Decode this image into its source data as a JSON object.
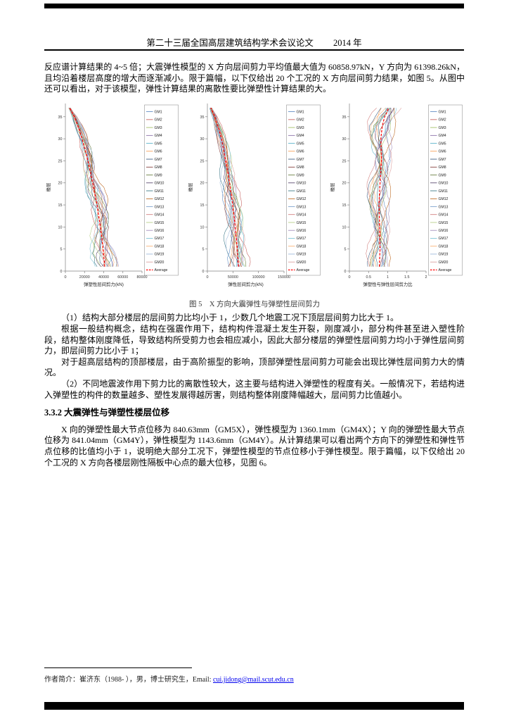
{
  "header": {
    "title": "第二十三届全国高层建筑结构学术会议论文",
    "year": "2014 年"
  },
  "paragraphs": {
    "p1": "反应谱计算结果的 4~5 倍；大震弹性模型的 X 方向层间剪力平均值最大值为 60858.97kN，Y 方向为 61398.26kN，且均沿着楼层高度的增大而逐渐减小。限于篇幅，以下仅给出 20 个工况的 X 方向层间剪力结果，如图 5。从图中还可以看出，对于该模型，弹性计算结果的离散性要比弹塑性计算结果的大。",
    "p2": "（1）结构大部分楼层的层间剪力比均小于 1，少数几个地震工况下顶层层间剪力比大于 1。",
    "p3": "根据一般结构概念，结构在强震作用下，结构构件混凝土发生开裂，刚度减小，部分构件甚至进入塑性阶段，结构整体刚度降低，导致结构所受剪力也会相应减小，因此大部分楼层的弹塑性层间剪力均小于弹性层间剪力，即层间剪力比小于 1；",
    "p4": "对于超高层结构的顶部楼层，由于高阶振型的影响，顶部弹塑性层间剪力可能会出现比弹性层间剪力大的情况。",
    "p5": "（2）不同地震波作用下剪力比的离散性较大，这主要与结构进入弹塑性的程度有关。一般情况下，若结构进入弹塑性的构件的数量越多、塑性发展得越厉害，则结构整体刚度降幅越大，层间剪力比值越小。",
    "p6": "X 向的弹塑性最大节点位移为 840.63mm（GM5X），弹性模型为 1360.1mm（GM4X）；Y 向的弹塑性最大节点位移为 841.04mm（GM4Y），弹性模型为 1143.6mm（GM4Y）。从计算结果可以看出两个方向下的弹塑性和弹性节点位移的比值均小于 1，说明绝大部分工况下，弹塑性模型的节点位移小于弹性模型。限于篇幅，以下仅给出 20 个工况的 X 方向各楼层刚性隔板中心点的最大位移，见图 6。"
  },
  "section_heading": "3.3.2 大震弹性与弹塑性楼层位移",
  "figure": {
    "caption": "图 5　X 方向大震弹性与弹塑性层间剪力"
  },
  "footer": {
    "bio_prefix": "作者简介：崔济东（1988- ），男，博士研究生，Email: ",
    "email": "cui.jidong@mail.scut.edu.cn"
  },
  "palette": [
    "#4F81BD",
    "#C0504D",
    "#9BBB59",
    "#8064A2",
    "#4BACC6",
    "#F79646",
    "#2C4D75",
    "#772C2A",
    "#5F7530",
    "#4D3B62",
    "#276A7C",
    "#B65708",
    "#729ACA",
    "#CD7371",
    "#AFC97A",
    "#9983B5",
    "#6FBDD1",
    "#F9AB6B",
    "#95B3D7",
    "#D99694"
  ],
  "chart_data": [
    {
      "type": "line",
      "title": "",
      "xlabel": "弹塑性层间剪力(kN)",
      "ylabel": "楼层",
      "xlim": [
        0,
        80000
      ],
      "ylim": [
        0,
        38
      ],
      "xticks": [
        "0",
        "20000",
        "40000",
        "60000",
        "80000"
      ],
      "yticks": [
        0,
        5,
        10,
        15,
        20,
        25,
        30,
        35
      ],
      "legend": [
        "GM1",
        "GM2",
        "GM3",
        "GM4",
        "GM5",
        "GM6",
        "GM7",
        "GM8",
        "GM9",
        "GM10",
        "GM11",
        "GM12",
        "GM13",
        "GM14",
        "GM15",
        "GM16",
        "GM17",
        "GM18",
        "GM19",
        "GM20",
        "Average"
      ],
      "legend_position": "right",
      "grid": false,
      "average_series": {
        "name": "Average",
        "color": "#FF0000",
        "style": "dashed",
        "stories": [
          1,
          5,
          10,
          15,
          20,
          25,
          30,
          33,
          35,
          36,
          37
        ],
        "values": [
          41000,
          39500,
          36500,
          33000,
          28500,
          23500,
          17500,
          13000,
          9500,
          7000,
          4500
        ]
      }
    },
    {
      "type": "line",
      "title": "",
      "xlabel": "弹性层间剪力(kN)",
      "ylabel": "楼层",
      "xlim": [
        0,
        150000
      ],
      "ylim": [
        0,
        38
      ],
      "xticks": [
        "0",
        "50000",
        "100000",
        "150000"
      ],
      "yticks": [
        0,
        5,
        10,
        15,
        20,
        25,
        30,
        35
      ],
      "legend": [
        "GM1",
        "GM2",
        "GM3",
        "GM4",
        "GM5",
        "GM6",
        "GM7",
        "GM8",
        "GM9",
        "GM10",
        "GM11",
        "GM12",
        "GM13",
        "GM14",
        "GM15",
        "GM16",
        "GM17",
        "GM18",
        "GM19",
        "GM20",
        "Average"
      ],
      "legend_position": "right",
      "grid": false,
      "average_series": {
        "name": "Average",
        "color": "#FF0000",
        "style": "dashed",
        "stories": [
          1,
          5,
          10,
          15,
          20,
          25,
          30,
          33,
          35,
          36,
          37
        ],
        "values": [
          60859,
          58500,
          54500,
          49500,
          43500,
          36000,
          27500,
          20500,
          15000,
          11000,
          7000
        ]
      }
    },
    {
      "type": "line",
      "title": "",
      "xlabel": "弹塑性与弹性层间剪力比",
      "ylabel": "楼层",
      "xlim": [
        0,
        2
      ],
      "ylim": [
        0,
        38
      ],
      "xticks": [
        "0",
        "0.5",
        "1",
        "1.5",
        "2"
      ],
      "yticks": [
        0,
        5,
        10,
        15,
        20,
        25,
        30,
        35
      ],
      "legend": [
        "GM1",
        "GM2",
        "GM3",
        "GM4",
        "GM5",
        "GM6",
        "GM7",
        "GM8",
        "GM9",
        "GM10",
        "GM11",
        "GM12",
        "GM13",
        "GM14",
        "GM15",
        "GM16",
        "GM17",
        "GM18",
        "GM19",
        "GM20",
        "Average"
      ],
      "legend_position": "right",
      "grid": false,
      "average_series": {
        "name": "Average",
        "color": "#FF0000",
        "style": "dashed",
        "stories": [
          1,
          5,
          10,
          15,
          20,
          25,
          30,
          33,
          35,
          36,
          37
        ],
        "values": [
          0.78,
          0.8,
          0.79,
          0.77,
          0.8,
          0.84,
          0.82,
          0.86,
          0.92,
          0.98,
          1.02
        ]
      }
    }
  ]
}
